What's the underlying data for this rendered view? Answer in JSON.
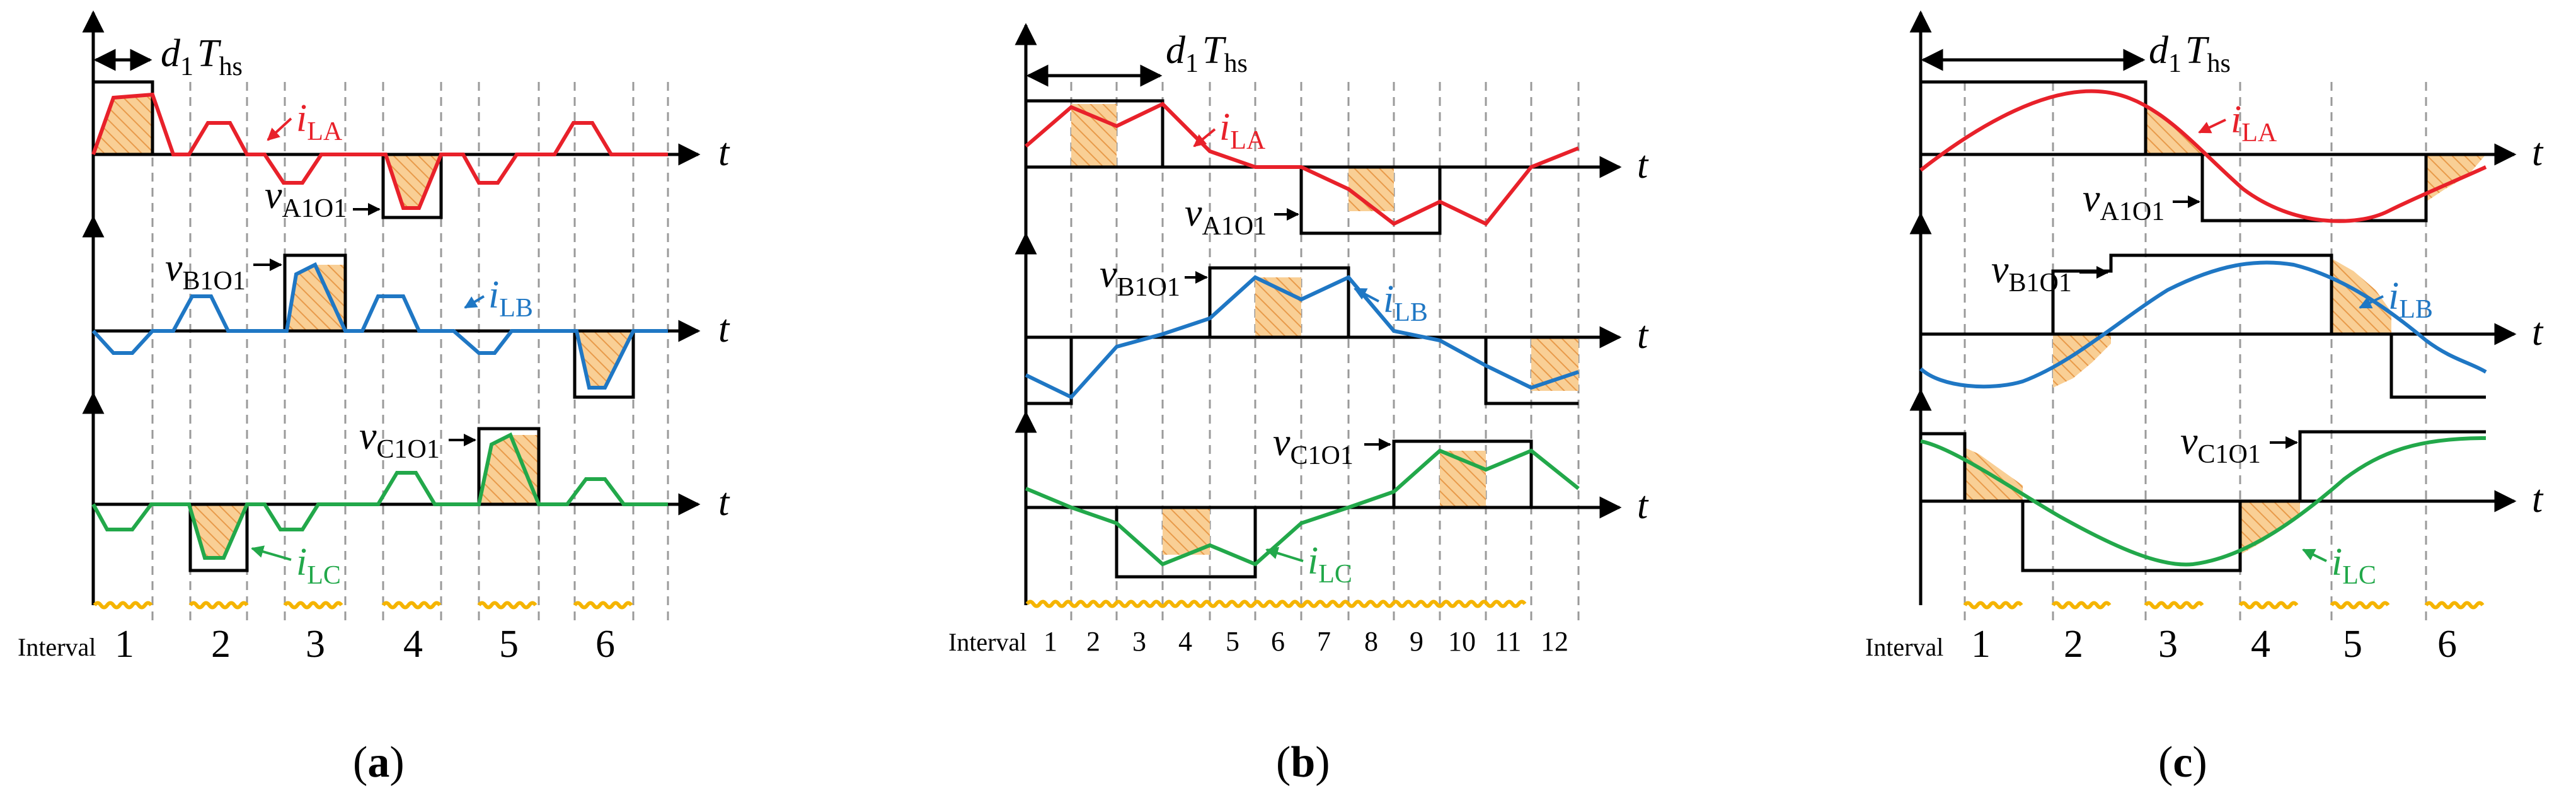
{
  "colors": {
    "phase_a": "#e8212a",
    "phase_b": "#1f77c4",
    "phase_c": "#22a84a",
    "voltage": "#000000",
    "hatch_fill": "#f9cf95",
    "hatch_line": "#e89a4a",
    "interval_marker": "#f5b400",
    "grid": "#9a9a9a"
  },
  "labels": {
    "time_axis": "t",
    "interval_prefix": "Interval",
    "duty_symbol": "d",
    "duty_index": "1",
    "period_symbol": "T",
    "period_sub": "hs",
    "i_symbol": "i",
    "v_symbol": "v",
    "sub_la": "LA",
    "sub_lb": "LB",
    "sub_lc": "LC",
    "sub_a": "A1O1",
    "sub_b": "B1O1",
    "sub_c": "C1O1"
  },
  "panels": [
    {
      "caption_open": "(",
      "caption_letter": "a",
      "caption_close": ")",
      "interval_numbers": [
        "1",
        "2",
        "3",
        "4",
        "5",
        "6"
      ]
    },
    {
      "caption_open": "(",
      "caption_letter": "b",
      "caption_close": ")",
      "interval_numbers": [
        "1",
        "2",
        "3",
        "4",
        "5",
        "6",
        "7",
        "8",
        "9",
        "10",
        "11",
        "12"
      ]
    },
    {
      "caption_open": "(",
      "caption_letter": "c",
      "caption_close": ")",
      "interval_numbers": [
        "1",
        "2",
        "3",
        "4",
        "5",
        "6"
      ]
    }
  ]
}
